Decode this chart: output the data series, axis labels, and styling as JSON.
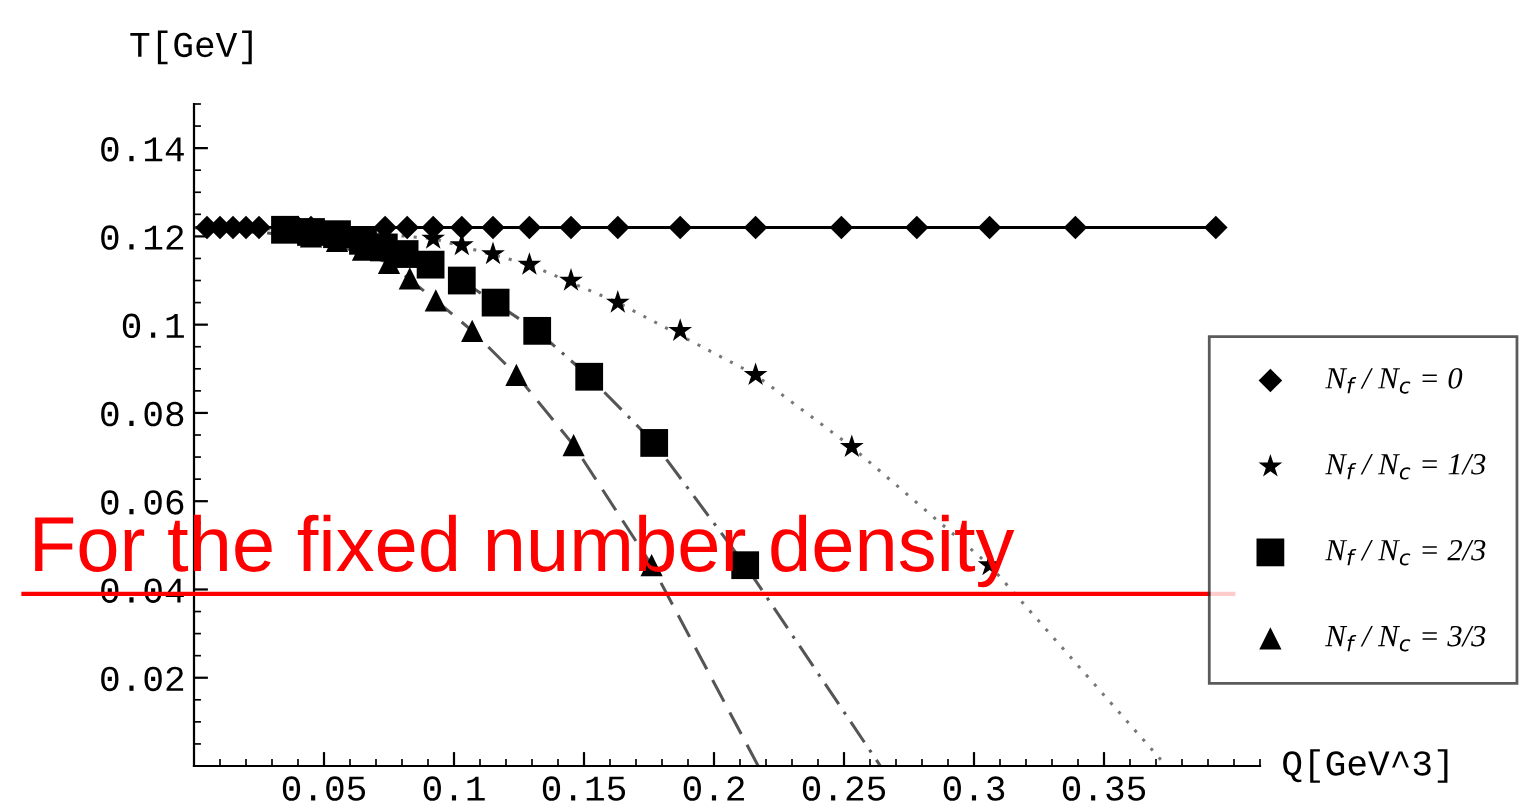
{
  "chart_data": {
    "type": "scatter",
    "xlabel": "Q[GeV^3]",
    "ylabel": "T[GeV]",
    "xlim": [
      0,
      0.41
    ],
    "ylim": [
      0,
      0.15
    ],
    "xticks": [
      0.05,
      0.1,
      0.15,
      0.2,
      0.25,
      0.3,
      0.35
    ],
    "yticks": [
      0.02,
      0.04,
      0.06,
      0.08,
      0.1,
      0.12,
      0.14
    ],
    "grid": false,
    "legend": "right",
    "series": [
      {
        "name": "N$_{f}$ / N$_{c}$ = 0",
        "type": "line",
        "marker": "diamond",
        "line_style": "solid",
        "color": "#000000",
        "x": [
          0.005,
          0.01,
          0.015,
          0.02,
          0.025,
          0.035,
          0.04,
          0.045,
          0.0735,
          0.082,
          0.092,
          0.103,
          0.115,
          0.129,
          0.145,
          0.163,
          0.187,
          0.216,
          0.249,
          0.278,
          0.306,
          0.339,
          0.393
        ],
        "values": [
          0.122,
          0.122,
          0.122,
          0.122,
          0.122,
          0.122,
          0.122,
          0.122,
          0.122,
          0.122,
          0.122,
          0.122,
          0.122,
          0.122,
          0.122,
          0.122,
          0.122,
          0.122,
          0.122,
          0.122,
          0.122,
          0.122,
          0.122
        ]
      },
      {
        "name": "N$_{f}$ / N$_{c}$ = 1/3",
        "marker": "star",
        "color": "#000000",
        "x": [
          0.092,
          0.103,
          0.115,
          0.129,
          0.145,
          0.163,
          0.187,
          0.216,
          0.253,
          0.306
        ],
        "values": [
          0.1195,
          0.118,
          0.116,
          0.1136,
          0.11,
          0.105,
          0.0986,
          0.0886,
          0.0723,
          0.0455
        ]
      },
      {
        "name": "N$_{f}$ / N$_{c}$ = 2/3",
        "marker": "square",
        "color": "#000000",
        "x": [
          0.035,
          0.045,
          0.055,
          0.065,
          0.073,
          0.081,
          0.091,
          0.103,
          0.116,
          0.132,
          0.152,
          0.177,
          0.212
        ],
        "values": [
          0.1215,
          0.121,
          0.1205,
          0.119,
          0.1175,
          0.116,
          0.1136,
          0.11,
          0.105,
          0.0986,
          0.0882,
          0.0732,
          0.0455
        ]
      },
      {
        "name": "N$_{f}$ / N$_{c}$ = 3/3",
        "marker": "triangle",
        "color": "#000000",
        "x": [
          0.045,
          0.055,
          0.065,
          0.075,
          0.083,
          0.093,
          0.107,
          0.124,
          0.146,
          0.176
        ],
        "values": [
          0.12,
          0.119,
          0.117,
          0.114,
          0.1105,
          0.1055,
          0.0986,
          0.0886,
          0.0727,
          0.0455
        ]
      },
      {
        "type": "line",
        "marker": "none",
        "line_style": "dotted",
        "color": "#777777",
        "x": [
          0,
          0.05,
          0.092,
          0.129,
          0.163,
          0.216,
          0.253,
          0.306,
          0.374
        ],
        "values": [
          0.122,
          0.1215,
          0.1195,
          0.1136,
          0.105,
          0.0886,
          0.0723,
          0.0455,
          0
        ]
      },
      {
        "type": "line",
        "marker": "none",
        "line_style": "dashdot",
        "color": "#555555",
        "x": [
          0,
          0.05,
          0.081,
          0.103,
          0.132,
          0.152,
          0.177,
          0.212,
          0.264
        ],
        "values": [
          0.122,
          0.121,
          0.116,
          0.11,
          0.0986,
          0.0882,
          0.0732,
          0.0455,
          0
        ]
      },
      {
        "type": "line",
        "marker": "none",
        "line_style": "dashed",
        "color": "#555555",
        "x": [
          0,
          0.045,
          0.075,
          0.093,
          0.107,
          0.124,
          0.146,
          0.176,
          0.217
        ],
        "values": [
          0.122,
          0.12,
          0.114,
          0.1055,
          0.0986,
          0.0886,
          0.0727,
          0.0455,
          0
        ]
      }
    ],
    "ref_lines": [
      {
        "axis": "y",
        "value": 0.039,
        "label": "For the fixed number density",
        "color": "#ff0000",
        "line_style": "solid"
      }
    ]
  }
}
